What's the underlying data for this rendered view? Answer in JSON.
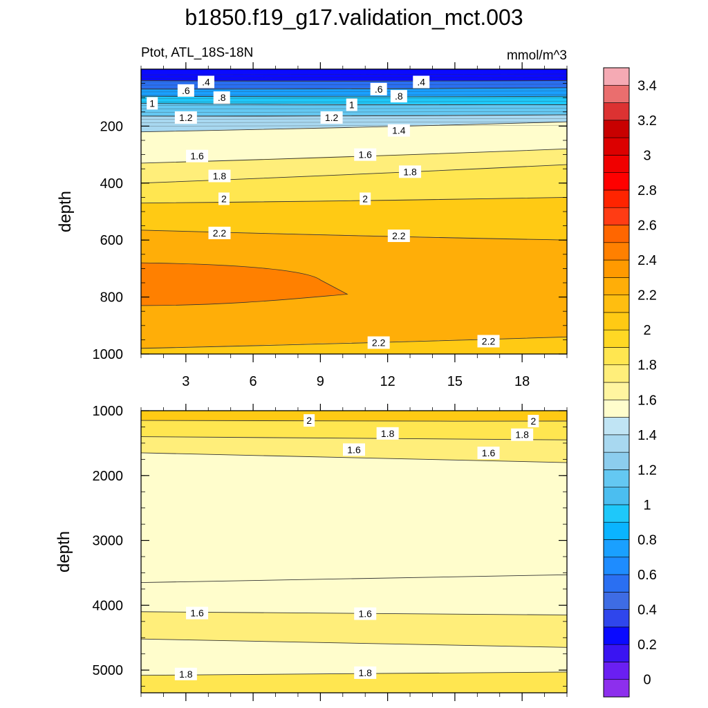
{
  "title": "b1850.f19_g17.validation_mct.003",
  "chart_data": {
    "type": "contour",
    "title": "b1850.f19_g17.validation_mct.003",
    "variable_label": "Ptot, ATL_18S-18N",
    "units": "mmol/m^3",
    "xlim": [
      1,
      20
    ],
    "x_ticks": [
      3,
      6,
      9,
      12,
      15,
      18
    ],
    "panels": [
      {
        "name": "upper",
        "ylabel": "depth",
        "ylim": [
          0,
          1000
        ],
        "y_ticks": [
          200,
          400,
          600,
          800,
          1000
        ],
        "contour_lines": [
          {
            "level": 0.4,
            "depth_left": 40,
            "depth_right": 40
          },
          {
            "level": 0.6,
            "depth_left": 70,
            "depth_right": 65
          },
          {
            "level": 0.8,
            "depth_left": 95,
            "depth_right": 95
          },
          {
            "level": 1.0,
            "depth_left": 120,
            "depth_right": 125
          },
          {
            "level": 1.2,
            "depth_left": 165,
            "depth_right": 160
          },
          {
            "level": 1.4,
            "depth_left": 220,
            "depth_right": 185
          },
          {
            "level": 1.6,
            "depth_left": 330,
            "depth_right": 280
          },
          {
            "level": 1.8,
            "depth_left": 400,
            "depth_right": 335
          },
          {
            "level": 2.0,
            "depth_left": 470,
            "depth_right": 450
          },
          {
            "level": 2.2,
            "depth_left": 565,
            "depth_right": 600
          },
          {
            "level": 2.2,
            "depth_left": 980,
            "depth_right": 940
          }
        ],
        "core_2_4": {
          "level": 2.4,
          "depth_top": 680,
          "depth_bottom": 830,
          "x_extent": 10.2
        },
        "labels": [
          {
            "text": ".4",
            "x": 3.9,
            "depth": 45
          },
          {
            "text": ".6",
            "x": 3.0,
            "depth": 75
          },
          {
            "text": ".8",
            "x": 4.6,
            "depth": 100
          },
          {
            "text": "1",
            "x": 1.5,
            "depth": 120
          },
          {
            "text": "1.2",
            "x": 3.0,
            "depth": 170
          },
          {
            "text": ".6",
            "x": 11.6,
            "depth": 70
          },
          {
            "text": ".8",
            "x": 12.5,
            "depth": 95
          },
          {
            "text": ".4",
            "x": 13.5,
            "depth": 45
          },
          {
            "text": "1",
            "x": 10.4,
            "depth": 125
          },
          {
            "text": "1.2",
            "x": 9.5,
            "depth": 170
          },
          {
            "text": "1.4",
            "x": 12.5,
            "depth": 215
          },
          {
            "text": "1.6",
            "x": 3.5,
            "depth": 305
          },
          {
            "text": "1.6",
            "x": 11.0,
            "depth": 300
          },
          {
            "text": "1.8",
            "x": 4.5,
            "depth": 375
          },
          {
            "text": "1.8",
            "x": 13.0,
            "depth": 360
          },
          {
            "text": "2",
            "x": 4.7,
            "depth": 455
          },
          {
            "text": "2",
            "x": 11.0,
            "depth": 455
          },
          {
            "text": "2.2",
            "x": 4.5,
            "depth": 575
          },
          {
            "text": "2.2",
            "x": 12.5,
            "depth": 585
          },
          {
            "text": "2.2",
            "x": 11.6,
            "depth": 960
          },
          {
            "text": "2.2",
            "x": 16.5,
            "depth": 955
          }
        ]
      },
      {
        "name": "lower",
        "ylabel": "depth",
        "ylim": [
          1000,
          5350
        ],
        "y_ticks": [
          1000,
          2000,
          3000,
          4000,
          5000
        ],
        "contour_lines": [
          {
            "level": 2.0,
            "depth_left": 1150,
            "depth_right": 1160
          },
          {
            "level": 1.8,
            "depth_left": 1400,
            "depth_right": 1450
          },
          {
            "level": 1.6,
            "depth_left": 1650,
            "depth_right": 1800
          },
          {
            "level": 1.6,
            "depth_left": 3650,
            "depth_right": 3530
          },
          {
            "level": 1.6,
            "depth_left": 4100,
            "depth_right": 4150
          },
          {
            "level": 1.8,
            "depth_left": 4520,
            "depth_right": 4650
          },
          {
            "level": 1.8,
            "depth_left": 5080,
            "depth_right": 5030
          }
        ],
        "labels": [
          {
            "text": "2",
            "x": 8.5,
            "depth": 1150
          },
          {
            "text": "2",
            "x": 18.5,
            "depth": 1160
          },
          {
            "text": "1.8",
            "x": 12.0,
            "depth": 1350
          },
          {
            "text": "1.8",
            "x": 18.0,
            "depth": 1370
          },
          {
            "text": "1.6",
            "x": 10.5,
            "depth": 1600
          },
          {
            "text": "1.6",
            "x": 16.5,
            "depth": 1650
          },
          {
            "text": "1.6",
            "x": 3.5,
            "depth": 4120
          },
          {
            "text": "1.6",
            "x": 11.0,
            "depth": 4130
          },
          {
            "text": "1.8",
            "x": 3.0,
            "depth": 5060
          },
          {
            "text": "1.8",
            "x": 11.0,
            "depth": 5040
          }
        ]
      }
    ],
    "colorbar": {
      "levels": [
        -0.2,
        0,
        0.2,
        0.4,
        0.6,
        0.8,
        1.0,
        1.2,
        1.4,
        1.6,
        1.8,
        2.0,
        2.2,
        2.4,
        2.6,
        2.8,
        3.0,
        3.2,
        3.4,
        3.6
      ],
      "tick_labels": [
        "0",
        "0.2",
        "0.4",
        "0.6",
        "0.8",
        "1",
        "1.2",
        "1.4",
        "1.6",
        "1.8",
        "2",
        "2.2",
        "2.4",
        "2.6",
        "2.8",
        "3",
        "3.2",
        "3.4"
      ],
      "colors": [
        "#8d2fed",
        "#6a1ff2",
        "#3a14f2",
        "#0a0aff",
        "#2f46ec",
        "#3e6ce4",
        "#2a6ff2",
        "#1e8cff",
        "#1aa0ff",
        "#0ab4ff",
        "#1ec8fa",
        "#4bbef0",
        "#64c8f2",
        "#8ccdee",
        "#a8d8f0",
        "#c0e4f4",
        "#fffdcc",
        "#fff5a0",
        "#ffee7a",
        "#ffe650",
        "#ffd824",
        "#ffca14",
        "#ffbe10",
        "#ffae08",
        "#ff9a00",
        "#ff8000",
        "#ff6600",
        "#ff3c14",
        "#ff2400",
        "#ff0000",
        "#f00000",
        "#dc0000",
        "#c80000",
        "#dc3232",
        "#ea6e6e",
        "#f5aab4"
      ]
    }
  }
}
